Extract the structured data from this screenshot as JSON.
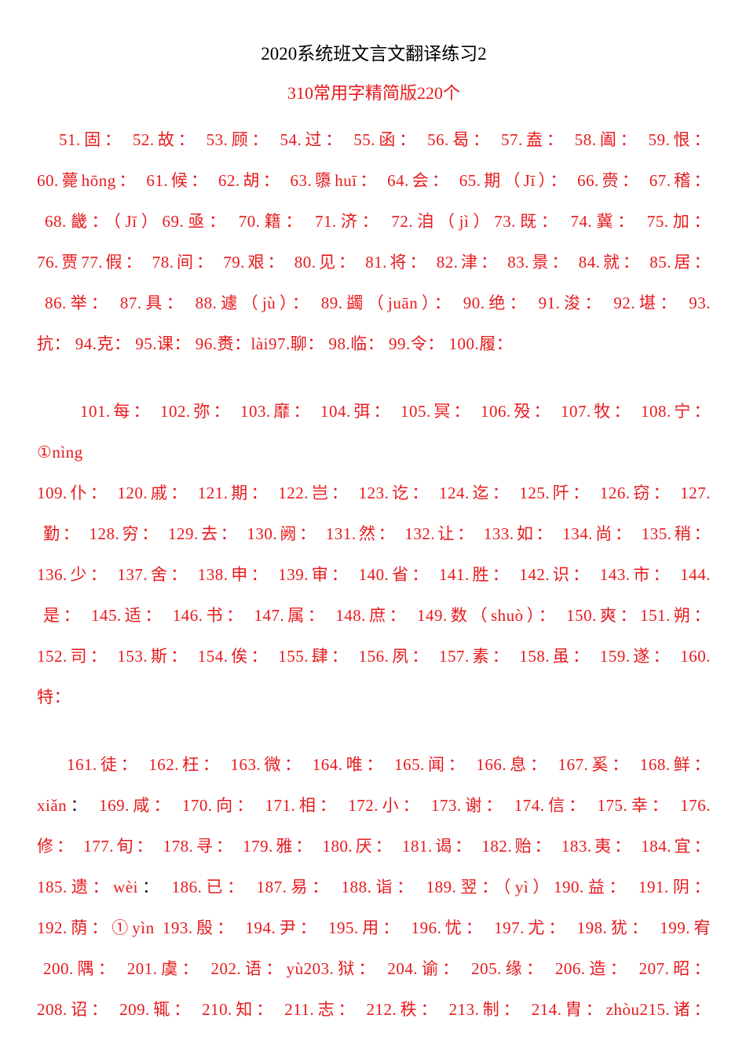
{
  "colors": {
    "red": "#e8191c",
    "black": "#1a1a1a",
    "background": "#ffffff"
  },
  "header": {
    "title": "2020系统班文言文翻译练习2",
    "subtitle": "310常用字精简版220个"
  },
  "document": {
    "paragraphs": [
      {
        "lines": [
          {
            "indent": 28,
            "justify": true,
            "segments": [
              {
                "t": "51.固： 52.故： 53.顾： 54.过： 55.函： 56.曷： 57.盍： 58.阖： 59.恨：",
                "c": "red"
              }
            ]
          },
          {
            "indent": 0,
            "justify": true,
            "segments": [
              {
                "t": "60.薨hōng： 61.候： 62.胡： 63.隳huī： 64.会： 65.期（Jī）： 66.赍： 67.稽：",
                "c": "red"
              }
            ]
          },
          {
            "indent": 10,
            "justify": true,
            "segments": [
              {
                "t": "68.畿：（Jī）69.亟： 70.籍： 71.济： 72.洎（jì）73.既： 74.冀： 75.加：",
                "c": "red"
              }
            ]
          },
          {
            "indent": 0,
            "justify": true,
            "segments": [
              {
                "t": "76.贾77.假： 78.间： 79.艰： 80.见： 81.将： 82.津： 83.景： 84.就： 85.居：",
                "c": "red"
              }
            ]
          },
          {
            "indent": 10,
            "justify": true,
            "segments": [
              {
                "t": "86.举： 87.具： 88.遽（jù）： 89.蠲（juān）： 90.绝： 91.浚： 92.堪： 93.",
                "c": "red"
              }
            ]
          },
          {
            "indent": 0,
            "justify": false,
            "segments": [
              {
                "t": "抗： 94.克： 95.课： 96.赉：lài97.聊： 98.临： 99.令： 100.履：",
                "c": "red"
              }
            ]
          }
        ]
      },
      {
        "lines": [
          {
            "indent": 55,
            "justify": true,
            "segments": [
              {
                "t": "101.每： 102.弥： 103.靡： 104.弭： 105.冥： 106.殁： 107.牧： 108.宁：",
                "c": "red"
              }
            ]
          },
          {
            "indent": 0,
            "justify": false,
            "segments": [
              {
                "t": "①nìng",
                "c": "red"
              }
            ]
          },
          {
            "indent": 0,
            "justify": true,
            "segments": [
              {
                "t": "109.仆： 120.戚： 121.期： 122.岂： 123.讫： 124.迄： 125.阡： 126.窃： 127.",
                "c": "red"
              }
            ]
          },
          {
            "indent": 8,
            "justify": true,
            "segments": [
              {
                "t": "勤： 128.穷： 129.去： 130.阙： 131.然： 132.让： 133.如： 134.尚： 135.稍：",
                "c": "red"
              }
            ]
          },
          {
            "indent": 0,
            "justify": true,
            "segments": [
              {
                "t": "136.少： 137.舍： 138.申： 139.审： 140.省： 141.胜： 142.识： 143.市： 144.",
                "c": "red"
              }
            ]
          },
          {
            "indent": 8,
            "justify": true,
            "segments": [
              {
                "t": "是： 145.适： 146.书： 147.属： 148.庶： 149.数（shuò）： 150.爽：151.朔：",
                "c": "red"
              }
            ]
          },
          {
            "indent": 0,
            "justify": true,
            "segments": [
              {
                "t": "152.司： 153.斯： 154.俟： 155.肆： 156.夙： 157.素： 158.虽： 159.遂： 160.",
                "c": "red"
              }
            ]
          },
          {
            "indent": 0,
            "justify": false,
            "segments": [
              {
                "t": "特：",
                "c": "red"
              }
            ]
          }
        ]
      },
      {
        "lines": [
          {
            "indent": 38,
            "justify": true,
            "segments": [
              {
                "t": "161.徒： 162.枉： 163.微： 164.唯： 165.闻： 166.息： 167.奚： 168.鲜：",
                "c": "red"
              }
            ]
          },
          {
            "indent": 0,
            "justify": true,
            "segments": [
              {
                "t": "xiǎn",
                "c": "red"
              },
              {
                "t": "：",
                "c": "black"
              },
              {
                "t": " 169.咸： 170.向： 171.相： 172.小： 173.谢： 174.信： 175.幸： 176.",
                "c": "red"
              }
            ]
          },
          {
            "indent": 0,
            "justify": true,
            "segments": [
              {
                "t": "修： 177.旬： 178.寻： 179.雅： 180.厌： 181.谒： 182.贻： 183.夷： 184.宜：",
                "c": "red"
              }
            ]
          },
          {
            "indent": 0,
            "justify": true,
            "segments": [
              {
                "t": "185.遗：wèi",
                "c": "red"
              },
              {
                "t": "：",
                "c": "black"
              },
              {
                "t": " 186.已： 187.易： 188.诣： 189.翌：（yì）190.益： 191.阴：",
                "c": "red"
              }
            ]
          },
          {
            "indent": 0,
            "justify": true,
            "segments": [
              {
                "t": "192.荫：①yìn 193.殷： 194.尹： 195.用： 196.忧： 197.尤： 198.犹： 199.宥",
                "c": "red"
              }
            ]
          },
          {
            "indent": 8,
            "justify": true,
            "segments": [
              {
                "t": "200.隅： 201.虞： 202.语：yù203.狱： 204.谕： 205.缘： 206.造： 207.昭：",
                "c": "red"
              }
            ]
          },
          {
            "indent": 0,
            "justify": true,
            "segments": [
              {
                "t": "208.诏： 209.辄： 210.知： 211.志： 212.秩： 213.制： 214.胄：zhòu215.诸：",
                "c": "red"
              }
            ]
          }
        ]
      }
    ]
  }
}
